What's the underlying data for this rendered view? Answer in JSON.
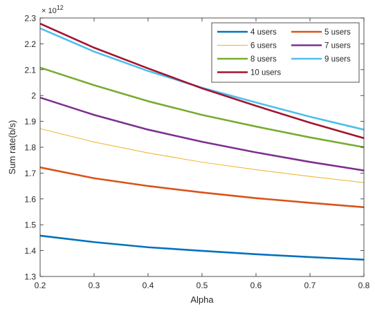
{
  "chart_data": {
    "type": "line",
    "xlabel": "Alpha",
    "ylabel": "Sum rate(b/s)",
    "y_exponent_label": "× 10",
    "y_exponent_power": "12",
    "xlim": [
      0.2,
      0.8
    ],
    "ylim": [
      1.3,
      2.3
    ],
    "x_ticks": [
      0.2,
      0.3,
      0.4,
      0.5,
      0.6,
      0.7,
      0.8
    ],
    "x_tick_labels": [
      "0.2",
      "0.3",
      "0.4",
      "0.5",
      "0.6",
      "0.7",
      "0.8"
    ],
    "y_ticks": [
      1.3,
      1.4,
      1.5,
      1.6,
      1.7,
      1.8,
      1.9,
      2.0,
      2.1,
      2.2,
      2.3
    ],
    "y_tick_labels": [
      "1.3",
      "1.4",
      "1.5",
      "1.6",
      "1.7",
      "1.8",
      "1.9",
      "2",
      "2.1",
      "2.2",
      "2.3"
    ],
    "grid": false,
    "box": true,
    "legend_position": "top-right",
    "x": [
      0.2,
      0.3,
      0.4,
      0.5,
      0.6,
      0.7,
      0.8
    ],
    "series": [
      {
        "name": "4 users",
        "color": "#0072BD",
        "width": 2.6,
        "values": [
          1.458,
          1.433,
          1.413,
          1.399,
          1.386,
          1.375,
          1.365
        ]
      },
      {
        "name": "5 users",
        "color": "#D95319",
        "width": 2.6,
        "values": [
          1.722,
          1.68,
          1.65,
          1.625,
          1.603,
          1.585,
          1.568
        ]
      },
      {
        "name": "6 users",
        "color": "#EDB120",
        "width": 1.0,
        "values": [
          1.872,
          1.82,
          1.778,
          1.742,
          1.713,
          1.687,
          1.663
        ]
      },
      {
        "name": "7 users",
        "color": "#7E2F8E",
        "width": 2.6,
        "values": [
          1.992,
          1.925,
          1.868,
          1.821,
          1.78,
          1.743,
          1.71
        ]
      },
      {
        "name": "8 users",
        "color": "#77AC30",
        "width": 2.6,
        "values": [
          2.108,
          2.04,
          1.978,
          1.925,
          1.88,
          1.838,
          1.8
        ]
      },
      {
        "name": "9 users",
        "color": "#4DBEEE",
        "width": 2.6,
        "values": [
          2.26,
          2.17,
          2.095,
          2.03,
          1.973,
          1.918,
          1.868
        ]
      },
      {
        "name": "10 users",
        "color": "#A2142F",
        "width": 2.6,
        "values": [
          2.278,
          2.185,
          2.105,
          2.028,
          1.96,
          1.895,
          1.835
        ]
      }
    ]
  }
}
